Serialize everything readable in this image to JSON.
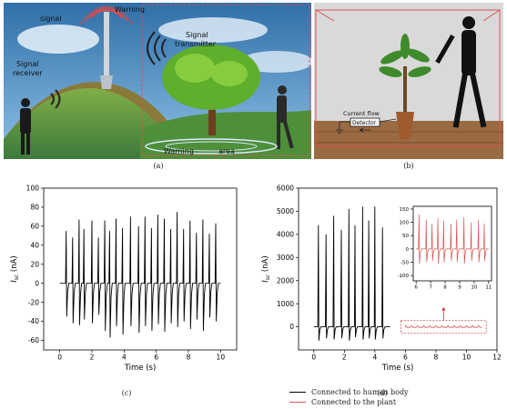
{
  "figure": {
    "panel_a": {
      "labels": {
        "warning_signal": [
          "Warning",
          "signal"
        ],
        "signal_receiver": [
          "Signal",
          "receiver"
        ],
        "signal_transmitter": [
          "Signal",
          "transmitter"
        ],
        "warning_area": [
          "Warning",
          "area"
        ]
      },
      "caption": "(a)"
    },
    "panel_b": {
      "labels": {
        "current_flow": "Current flow",
        "detector": "Detector"
      },
      "caption": "(b)"
    },
    "panel_c_caption": "(c)",
    "panel_d_caption": "(d)",
    "legend": [
      {
        "label": "Connected to human body",
        "color": "#000000"
      },
      {
        "label": "Connected to the plant",
        "color": "#d9534f"
      }
    ]
  },
  "chart_data": [
    {
      "id": "c",
      "type": "line",
      "xlabel": "Time (s)",
      "ylabel_main": "I",
      "ylabel_sub": "sc",
      "ylabel_unit": " (nA)",
      "xlim": [
        -1,
        11
      ],
      "ylim": [
        -70,
        100
      ],
      "xticks": [
        0,
        2,
        4,
        6,
        8,
        10
      ],
      "yticks": [
        -60,
        -40,
        -20,
        0,
        20,
        40,
        60,
        80,
        100
      ],
      "series": [
        {
          "color": "#000000",
          "peaks": [
            {
              "t": 0.4,
              "pos": 55,
              "neg": -35
            },
            {
              "t": 0.8,
              "pos": 48,
              "neg": -42
            },
            {
              "t": 1.2,
              "pos": 67,
              "neg": -44
            },
            {
              "t": 1.5,
              "pos": 57,
              "neg": -38
            },
            {
              "t": 2.0,
              "pos": 66,
              "neg": -42
            },
            {
              "t": 2.4,
              "pos": 48,
              "neg": -33
            },
            {
              "t": 2.8,
              "pos": 66,
              "neg": -50
            },
            {
              "t": 3.1,
              "pos": 55,
              "neg": -57
            },
            {
              "t": 3.5,
              "pos": 68,
              "neg": -45
            },
            {
              "t": 3.9,
              "pos": 58,
              "neg": -54
            },
            {
              "t": 4.4,
              "pos": 70,
              "neg": -45
            },
            {
              "t": 4.9,
              "pos": 60,
              "neg": -52
            },
            {
              "t": 5.3,
              "pos": 70,
              "neg": -45
            },
            {
              "t": 5.7,
              "pos": 58,
              "neg": -50
            },
            {
              "t": 6.1,
              "pos": 72,
              "neg": -43
            },
            {
              "t": 6.5,
              "pos": 68,
              "neg": -51
            },
            {
              "t": 6.9,
              "pos": 57,
              "neg": -42
            },
            {
              "t": 7.3,
              "pos": 75,
              "neg": -46
            },
            {
              "t": 7.7,
              "pos": 57,
              "neg": -40
            },
            {
              "t": 8.1,
              "pos": 66,
              "neg": -48
            },
            {
              "t": 8.5,
              "pos": 53,
              "neg": -38
            },
            {
              "t": 8.9,
              "pos": 67,
              "neg": -50
            },
            {
              "t": 9.3,
              "pos": 52,
              "neg": -36
            },
            {
              "t": 9.7,
              "pos": 63,
              "neg": -40
            }
          ]
        }
      ]
    },
    {
      "id": "d",
      "type": "line",
      "xlabel": "Time (s)",
      "ylabel_main": "I",
      "ylabel_sub": "sc",
      "ylabel_unit": " (nA)",
      "xlim": [
        -1,
        12
      ],
      "ylim": [
        -1000,
        6000
      ],
      "xticks": [
        0,
        2,
        4,
        6,
        8,
        10,
        12
      ],
      "yticks": [
        0,
        1000,
        2000,
        3000,
        4000,
        5000,
        6000
      ],
      "series": [
        {
          "color": "#000000",
          "range": [
            0,
            5
          ],
          "peaks": [
            {
              "t": 0.3,
              "pos": 4400,
              "neg": -600
            },
            {
              "t": 0.8,
              "pos": 4000,
              "neg": -500
            },
            {
              "t": 1.3,
              "pos": 4800,
              "neg": -550
            },
            {
              "t": 1.8,
              "pos": 4200,
              "neg": -500
            },
            {
              "t": 2.3,
              "pos": 5100,
              "neg": -600
            },
            {
              "t": 2.7,
              "pos": 4400,
              "neg": -450
            },
            {
              "t": 3.2,
              "pos": 5200,
              "neg": -550
            },
            {
              "t": 3.6,
              "pos": 4600,
              "neg": -500
            },
            {
              "t": 4.0,
              "pos": 5200,
              "neg": -550
            },
            {
              "t": 4.5,
              "pos": 4300,
              "neg": -500
            }
          ]
        },
        {
          "color": "#d9534f",
          "range": [
            6,
            11
          ],
          "baseline": 0
        }
      ],
      "inset": {
        "xlim": [
          5.8,
          11.2
        ],
        "ylim": [
          -120,
          160
        ],
        "xticks": [
          6,
          7,
          8,
          9,
          10,
          11
        ],
        "yticks": [
          -100,
          -50,
          0,
          50,
          100,
          150
        ],
        "peaks": [
          {
            "t": 6.2,
            "pos": 130,
            "neg": -55
          },
          {
            "t": 6.7,
            "pos": 110,
            "neg": -50
          },
          {
            "t": 7.1,
            "pos": 95,
            "neg": -45
          },
          {
            "t": 7.5,
            "pos": 115,
            "neg": -55
          },
          {
            "t": 7.9,
            "pos": 105,
            "neg": -50
          },
          {
            "t": 8.4,
            "pos": 95,
            "neg": -45
          },
          {
            "t": 8.8,
            "pos": 110,
            "neg": -50
          },
          {
            "t": 9.3,
            "pos": 120,
            "neg": -55
          },
          {
            "t": 9.8,
            "pos": 100,
            "neg": -45
          },
          {
            "t": 10.3,
            "pos": 110,
            "neg": -50
          },
          {
            "t": 10.7,
            "pos": 95,
            "neg": -45
          }
        ]
      }
    }
  ]
}
